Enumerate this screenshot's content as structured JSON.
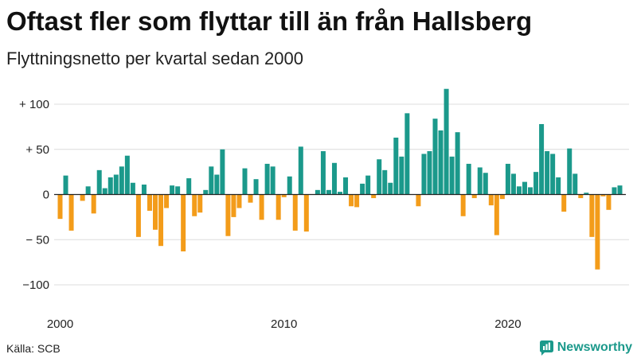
{
  "source": "Källa: SCB",
  "logo": {
    "name": "Newsworthy",
    "icon": "chart-bubble-icon"
  },
  "colors": {
    "positive": "#1b998b",
    "negative": "#f39c1a",
    "grid": "#dcdcdc",
    "zero_line": "#222222",
    "brand": "#1b998b"
  },
  "chart_data": {
    "type": "bar",
    "title": "Oftast fler som flyttar till än från Hallsberg",
    "subtitle": "Flyttningsnetto per kvartal sedan 2000",
    "xlabel": "",
    "ylabel": "",
    "grid": true,
    "legend": false,
    "x": [
      2000,
      2000.25,
      2000.5,
      2000.75,
      2001,
      2001.25,
      2001.5,
      2001.75,
      2002,
      2002.25,
      2002.5,
      2002.75,
      2003,
      2003.25,
      2003.5,
      2003.75,
      2004,
      2004.25,
      2004.5,
      2004.75,
      2005,
      2005.25,
      2005.5,
      2005.75,
      2006,
      2006.25,
      2006.5,
      2006.75,
      2007,
      2007.25,
      2007.5,
      2007.75,
      2008,
      2008.25,
      2008.5,
      2008.75,
      2009,
      2009.25,
      2009.5,
      2009.75,
      2010,
      2010.25,
      2010.5,
      2010.75,
      2011,
      2011.25,
      2011.5,
      2011.75,
      2012,
      2012.25,
      2012.5,
      2012.75,
      2013,
      2013.25,
      2013.5,
      2013.75,
      2014,
      2014.25,
      2014.5,
      2014.75,
      2015,
      2015.25,
      2015.5,
      2015.75,
      2016,
      2016.25,
      2016.5,
      2016.75,
      2017,
      2017.25,
      2017.5,
      2017.75,
      2018,
      2018.25,
      2018.5,
      2018.75,
      2019,
      2019.25,
      2019.5,
      2019.75,
      2020,
      2020.25,
      2020.5,
      2020.75,
      2021,
      2021.25,
      2021.5,
      2021.75,
      2022,
      2022.25,
      2022.5,
      2022.75,
      2023,
      2023.25,
      2023.5,
      2023.75,
      2024,
      2024.25,
      2024.5,
      2024.75,
      2025
    ],
    "values": [
      -27,
      21,
      -40,
      0,
      -7,
      9,
      -21,
      27,
      7,
      19,
      22,
      31,
      43,
      13,
      -47,
      11,
      -18,
      -39,
      -57,
      -15,
      10,
      9,
      -63,
      18,
      -24,
      -20,
      5,
      31,
      22,
      50,
      -46,
      -25,
      -15,
      29,
      -9,
      17,
      -28,
      34,
      31,
      -28,
      -3,
      20,
      -40,
      53,
      -41,
      0,
      5,
      48,
      5,
      35,
      3,
      19,
      -13,
      -14,
      12,
      21,
      -4,
      39,
      27,
      13,
      63,
      42,
      90,
      0,
      -13,
      45,
      48,
      84,
      71,
      117,
      42,
      69,
      -24,
      34,
      -4,
      30,
      24,
      -12,
      -45,
      -5,
      34,
      23,
      9,
      14,
      8,
      25,
      78,
      48,
      45,
      19,
      -19,
      51,
      23,
      -4,
      2,
      -47,
      -83,
      -2,
      -17,
      8,
      10
    ],
    "xticks": [
      {
        "value": 2000,
        "label": "2000"
      },
      {
        "value": 2010,
        "label": "2010"
      },
      {
        "value": 2020,
        "label": "2020"
      }
    ],
    "yticks": [
      {
        "value": 100,
        "label": "+ 100"
      },
      {
        "value": 50,
        "label": "+ 50"
      },
      {
        "value": 0,
        "label": "0"
      },
      {
        "value": -50,
        "label": "− 50"
      },
      {
        "value": -100,
        "label": "−100"
      }
    ]
  }
}
